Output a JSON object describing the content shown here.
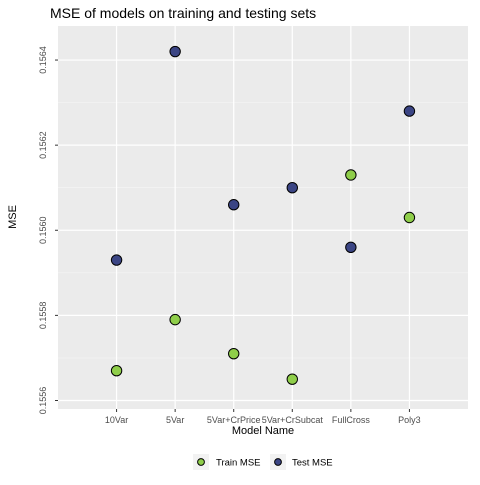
{
  "chart_data": {
    "type": "scatter",
    "title": "MSE of models on training and testing sets",
    "xlabel": "Model Name",
    "ylabel": "MSE",
    "categories": [
      "10Var",
      "5Var",
      "5Var+CrPrice",
      "5Var+CrSubcat",
      "FullCross",
      "Poly3"
    ],
    "yticks": [
      "0.1556",
      "0.1558",
      "0.1560",
      "0.1562",
      "0.1564"
    ],
    "ylim": [
      0.15558,
      0.15648
    ],
    "grid": true,
    "legend_position": "bottom",
    "series": [
      {
        "name": "Train MSE",
        "color": "#8fce4a",
        "values": [
          0.15567,
          0.15579,
          0.15571,
          0.15565,
          0.15613,
          0.15603
        ]
      },
      {
        "name": "Test MSE",
        "color": "#3b4584",
        "values": [
          0.15593,
          0.15642,
          0.15606,
          0.1561,
          0.15596,
          0.15628
        ]
      }
    ]
  }
}
